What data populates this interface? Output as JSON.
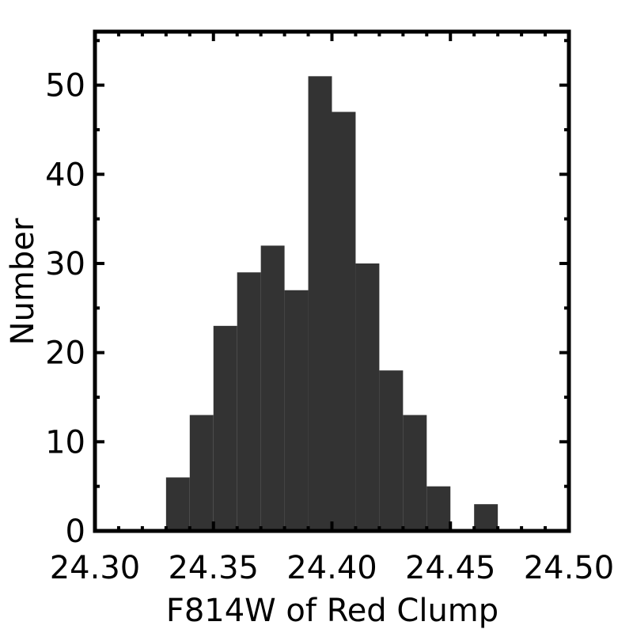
{
  "chart_data": {
    "type": "histogram",
    "xlabel": "F814W of Red Clump",
    "ylabel": "Number",
    "bins": [
      24.33,
      24.34,
      24.35,
      24.36,
      24.37,
      24.38,
      24.39,
      24.4,
      24.41,
      24.42,
      24.43,
      24.44,
      24.45,
      24.46,
      24.47
    ],
    "values": [
      6,
      13,
      23,
      29,
      32,
      27,
      51,
      47,
      30,
      18,
      13,
      5,
      0,
      3
    ],
    "color": "#333333",
    "xlim": [
      24.3,
      24.5
    ],
    "xticks": [
      {
        "value": 24.3,
        "label": "24.30"
      },
      {
        "value": 24.35,
        "label": "24.35"
      },
      {
        "value": 24.4,
        "label": "24.40"
      },
      {
        "value": 24.45,
        "label": "24.45"
      },
      {
        "value": 24.5,
        "label": "24.50"
      }
    ],
    "xminorticks": [
      24.31,
      24.32,
      24.33,
      24.34,
      24.36,
      24.37,
      24.38,
      24.39,
      24.41,
      24.42,
      24.43,
      24.44,
      24.46,
      24.47,
      24.48,
      24.49
    ],
    "ylim": [
      0,
      56
    ],
    "yticks": [
      0,
      10,
      20,
      30,
      40,
      50
    ],
    "yminorticks": [
      5,
      15,
      25,
      35,
      45,
      55
    ]
  }
}
